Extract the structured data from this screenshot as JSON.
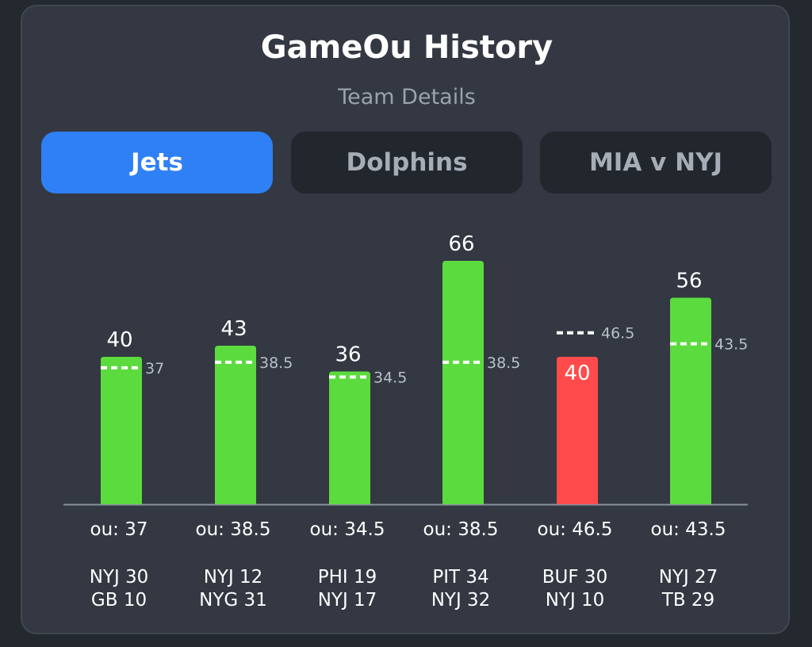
{
  "title": "GameOu History",
  "subtitle": "Team Details",
  "tabs": [
    {
      "label": "Jets",
      "active": true
    },
    {
      "label": "Dolphins",
      "active": false
    },
    {
      "label": "MIA v NYJ",
      "active": false
    }
  ],
  "colors": {
    "over": "#5cdb3f",
    "under": "#ff4b4b",
    "accent": "#2f80f5"
  },
  "chart_data": {
    "type": "bar",
    "ylim": [
      0,
      66
    ],
    "games": [
      {
        "total": "40",
        "value": 40,
        "ou": 37,
        "ou_text": "37",
        "ou_label": "ou: 37",
        "score1": "NYJ 30",
        "score2": "GB 10",
        "result": "over"
      },
      {
        "total": "43",
        "value": 43,
        "ou": 38.5,
        "ou_text": "38.5",
        "ou_label": "ou: 38.5",
        "score1": "NYJ 12",
        "score2": "NYG 31",
        "result": "over"
      },
      {
        "total": "36",
        "value": 36,
        "ou": 34.5,
        "ou_text": "34.5",
        "ou_label": "ou: 34.5",
        "score1": "PHI 19",
        "score2": "NYJ 17",
        "result": "over"
      },
      {
        "total": "66",
        "value": 66,
        "ou": 38.5,
        "ou_text": "38.5",
        "ou_label": "ou: 38.5",
        "score1": "PIT 34",
        "score2": "NYJ 32",
        "result": "over"
      },
      {
        "total": "40",
        "value": 40,
        "ou": 46.5,
        "ou_text": "46.5",
        "ou_label": "ou: 46.5",
        "score1": "BUF 30",
        "score2": "NYJ 10",
        "result": "under"
      },
      {
        "total": "56",
        "value": 56,
        "ou": 43.5,
        "ou_text": "43.5",
        "ou_label": "ou: 43.5",
        "score1": "NYJ 27",
        "score2": "TB 29",
        "result": "over"
      }
    ]
  }
}
